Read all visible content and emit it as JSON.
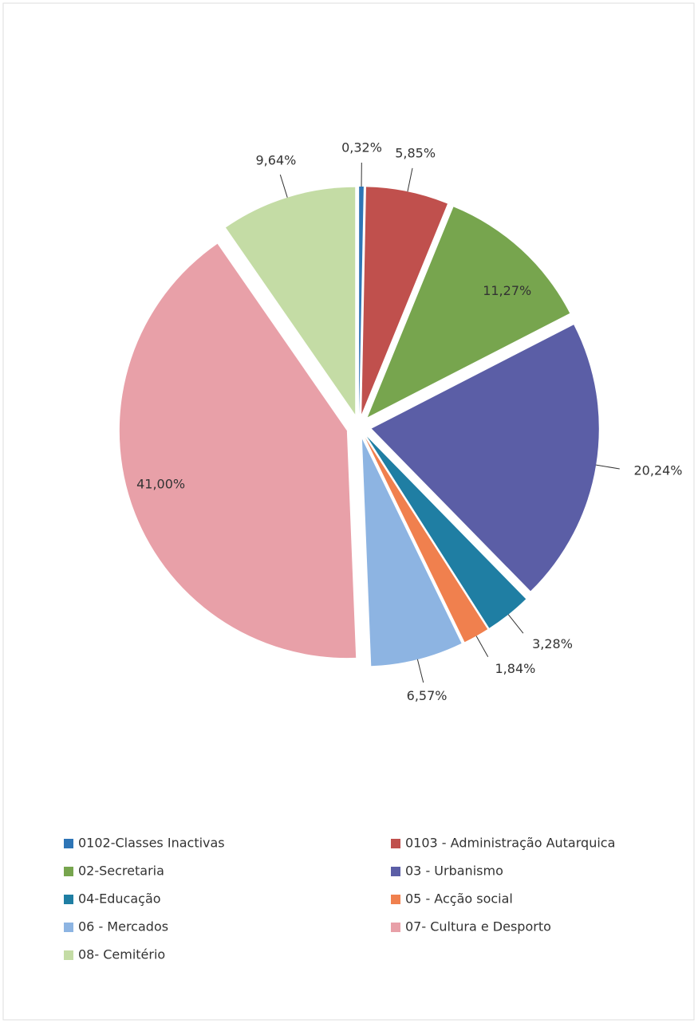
{
  "chart_data": {
    "type": "pie",
    "categories": [
      "0102-Classes Inactivas",
      "0103 - Administração Autarquica",
      "02-Secretaria",
      "03 - Urbanismo",
      "04-Educação",
      "05 - Acção social",
      "06 - Mercados",
      "07- Cultura e Desporto",
      "08- Cemitério"
    ],
    "values": [
      0.32,
      5.85,
      11.27,
      20.24,
      3.28,
      1.84,
      6.57,
      41.0,
      9.64
    ],
    "value_labels": [
      "0,32%",
      "5,85%",
      "11,27%",
      "20,24%",
      "3,28%",
      "1,84%",
      "6,57%",
      "41,00%",
      "9,64%"
    ],
    "colors": [
      "#2e75b6",
      "#c0504d",
      "#77a54e",
      "#5b5ea6",
      "#1f7ea3",
      "#f0804e",
      "#8db4e2",
      "#e8a0a8",
      "#c4dca5"
    ],
    "legend": "bottom"
  }
}
